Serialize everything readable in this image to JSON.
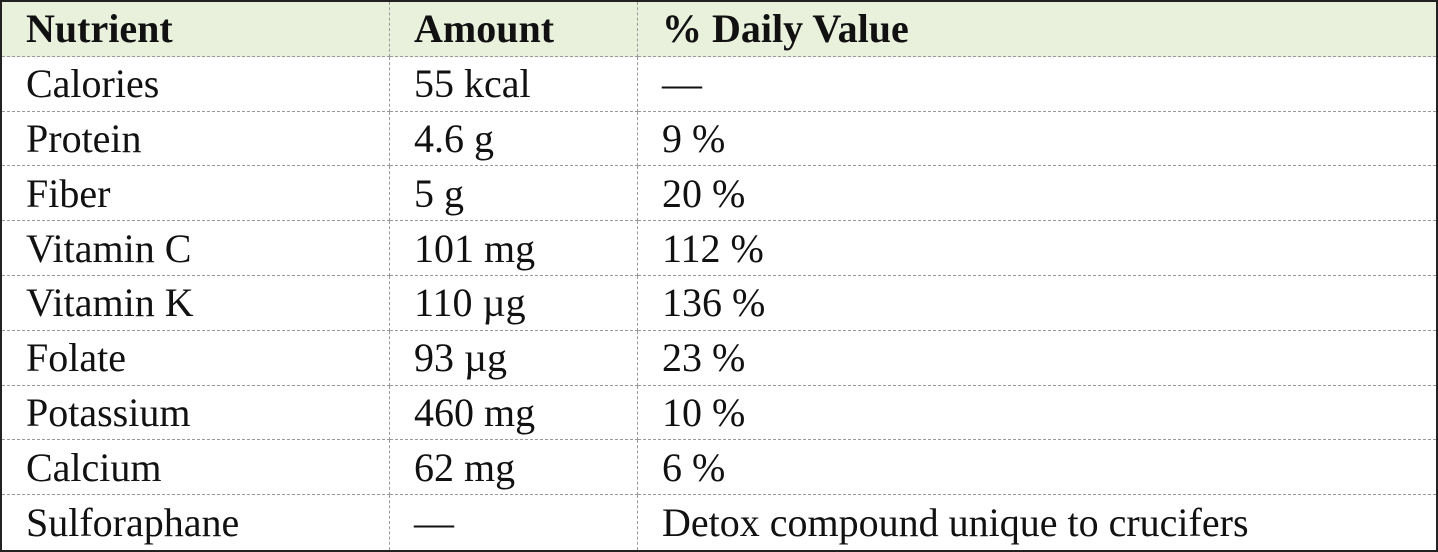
{
  "table": {
    "header": [
      "Nutrient",
      "Amount",
      "% Daily Value"
    ],
    "rows": [
      [
        "Calories",
        "55 kcal",
        "—"
      ],
      [
        "Protein",
        "4.6 g",
        "9 %"
      ],
      [
        "Fiber",
        "5 g",
        "20 %"
      ],
      [
        "Vitamin C",
        "101 mg",
        "112 %"
      ],
      [
        "Vitamin K",
        "110 µg",
        "136 %"
      ],
      [
        "Folate",
        "93 µg",
        "23 %"
      ],
      [
        "Potassium",
        "460 mg",
        "10 %"
      ],
      [
        "Calcium",
        "62 mg",
        "6 %"
      ],
      [
        "Sulforaphane",
        "—",
        "Detox compound unique to crucifers"
      ]
    ]
  }
}
